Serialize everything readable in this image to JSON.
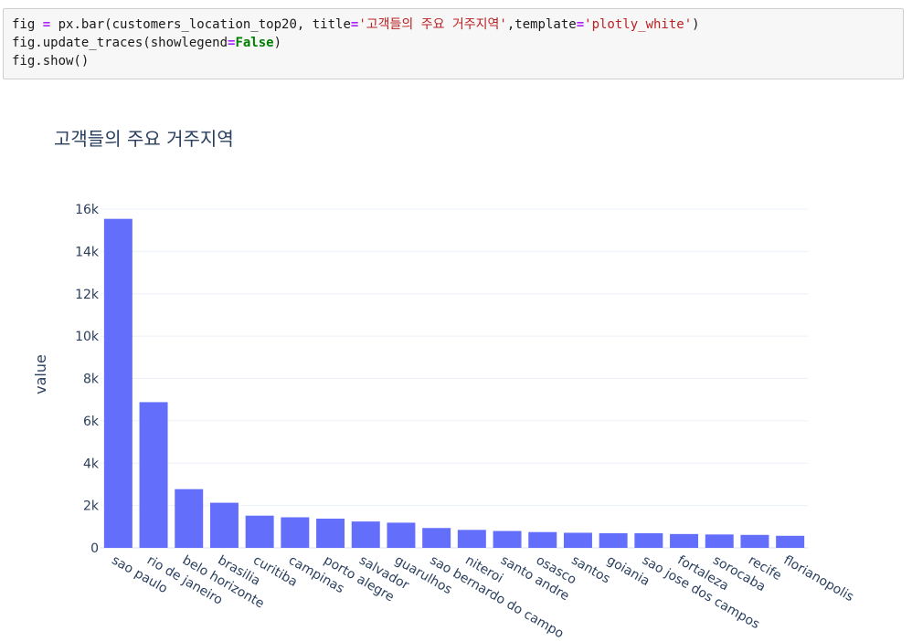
{
  "code": {
    "line1": {
      "a": "fig ",
      "op1": "=",
      "b": " px.bar(customers_location_top20, title",
      "op2": "=",
      "s1": "'고객들의 주요 거주지역'",
      "c": ",template",
      "op3": "=",
      "s2": "'plotly_white'",
      "d": ")"
    },
    "line2": {
      "a": "fig.update_traces(showlegend",
      "op": "=",
      "kw": "False",
      "b": ")"
    },
    "line3": {
      "a": "fig.show()"
    }
  },
  "chart_data": {
    "type": "bar",
    "title": "고객들의 주요 거주지역",
    "xlabel": "",
    "ylabel": "value",
    "ylim": [
      0,
      16000
    ],
    "yticks": [
      0,
      2000,
      4000,
      6000,
      8000,
      10000,
      12000,
      14000,
      16000
    ],
    "ytick_labels": [
      "0",
      "2k",
      "4k",
      "6k",
      "8k",
      "10k",
      "12k",
      "14k",
      "16k"
    ],
    "bar_color": "#636efa",
    "grid": true,
    "categories": [
      "sao paulo",
      "rio de janeiro",
      "belo horizonte",
      "brasilia",
      "curitiba",
      "campinas",
      "porto alegre",
      "salvador",
      "guarulhos",
      "sao bernardo do campo",
      "niteroi",
      "santo andre",
      "osasco",
      "santos",
      "goiania",
      "sao jose dos campos",
      "fortaleza",
      "sorocaba",
      "recife",
      "florianopolis"
    ],
    "values": [
      15540,
      6882,
      2773,
      2131,
      1521,
      1444,
      1379,
      1245,
      1189,
      938,
      849,
      797,
      746,
      713,
      692,
      691,
      654,
      633,
      613,
      570
    ]
  }
}
